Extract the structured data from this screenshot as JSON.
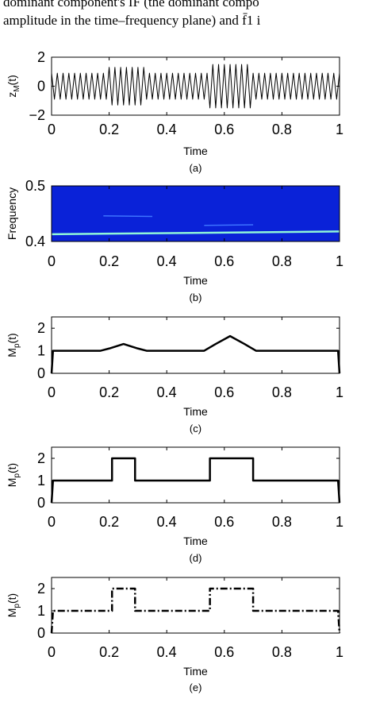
{
  "text": {
    "lines": [
      "dominant component's IF (the dominant compo",
      "amplitude in the time–frequency plane) and f̄1 i"
    ]
  },
  "chart_data": [
    {
      "type": "line",
      "caption": "(a)",
      "x_label": "Time",
      "y_label": {
        "base": "z",
        "sub": "M",
        "tail": "(t)"
      },
      "xlim": [
        0,
        1
      ],
      "ylim": [
        -2,
        2
      ],
      "xticks": [
        0,
        0.2,
        0.4,
        0.6,
        0.8,
        1
      ],
      "yticks": [
        {
          "value": -2,
          "label": "−2"
        },
        0,
        2
      ],
      "color": "#000000",
      "line_width": 1,
      "line_style": "solid",
      "x": [
        0,
        0.01,
        0.02,
        0.03,
        0.04,
        0.05,
        0.06,
        0.07,
        0.08,
        0.09,
        0.1,
        0.11,
        0.12,
        0.13,
        0.14,
        0.15,
        0.16,
        0.17,
        0.18,
        0.19,
        0.2,
        0.21,
        0.22,
        0.23,
        0.24,
        0.25,
        0.26,
        0.27,
        0.28,
        0.29,
        0.3,
        0.31,
        0.32,
        0.33,
        0.34,
        0.35,
        0.36,
        0.37,
        0.38,
        0.39,
        0.4,
        0.41,
        0.42,
        0.43,
        0.44,
        0.45,
        0.46,
        0.47,
        0.48,
        0.49,
        0.5,
        0.51,
        0.52,
        0.53,
        0.54,
        0.55,
        0.56,
        0.57,
        0.58,
        0.59,
        0.6,
        0.61,
        0.62,
        0.63,
        0.64,
        0.65,
        0.66,
        0.67,
        0.68,
        0.69,
        0.7,
        0.71,
        0.72,
        0.73,
        0.74,
        0.75,
        0.76,
        0.77,
        0.78,
        0.79,
        0.8,
        0.81,
        0.82,
        0.83,
        0.84,
        0.85,
        0.86,
        0.87,
        0.88,
        0.89,
        0.9,
        0.91,
        0.92,
        0.93,
        0.94,
        0.95,
        0.96,
        0.97,
        0.98,
        0.99,
        1
      ],
      "values": [
        0.9,
        -0.9,
        0.9,
        -0.9,
        0.9,
        -0.9,
        0.9,
        -0.9,
        0.9,
        -0.9,
        0.9,
        -0.9,
        0.9,
        -0.9,
        0.9,
        -0.9,
        0.9,
        -0.9,
        0.9,
        -0.9,
        1.3,
        -1.3,
        1.3,
        -1.3,
        1.3,
        -1.3,
        1.3,
        -1.3,
        1.3,
        -1.3,
        1.3,
        -1.3,
        1.3,
        -0.9,
        0.9,
        -0.9,
        0.9,
        -0.9,
        0.9,
        -0.9,
        0.9,
        -0.9,
        0.9,
        -0.9,
        0.9,
        -0.9,
        0.9,
        -0.9,
        0.9,
        -0.9,
        0.9,
        -0.9,
        0.9,
        -0.9,
        0.9,
        -1.5,
        1.5,
        -1.5,
        1.5,
        -1.5,
        1.5,
        -1.5,
        1.5,
        -1.5,
        1.5,
        -1.5,
        1.5,
        -1.5,
        1.5,
        -1.5,
        0.9,
        -0.9,
        0.9,
        -0.9,
        0.9,
        -0.9,
        0.9,
        -0.9,
        0.9,
        -0.9,
        0.9,
        -0.9,
        0.9,
        -0.9,
        0.9,
        -0.9,
        0.9,
        -0.9,
        0.9,
        -0.9,
        0.9,
        -0.9,
        0.9,
        -0.9,
        0.9,
        -0.9,
        0.9,
        -0.9,
        0.9,
        -0.9,
        0.9
      ]
    },
    {
      "type": "spectrogram",
      "caption": "(b)",
      "x_label": "Time",
      "y_label": {
        "base": "Frequency"
      },
      "xlim": [
        0,
        1
      ],
      "ylim": [
        0.4,
        0.5
      ],
      "xticks": [
        0,
        0.2,
        0.4,
        0.6,
        0.8,
        1
      ],
      "yticks": [
        0.4,
        0.5
      ],
      "background": "#0a22d8",
      "series": [
        {
          "color": "#8ff5d8",
          "x": [
            0,
            1
          ],
          "values": [
            0.413,
            0.418
          ]
        },
        {
          "color": "#3d73ff",
          "x": [
            0.18,
            0.35
          ],
          "values": [
            0.446,
            0.445
          ]
        },
        {
          "color": "#3d73ff",
          "x": [
            0.53,
            0.7
          ],
          "values": [
            0.429,
            0.43
          ]
        }
      ]
    },
    {
      "type": "line",
      "caption": "(c)",
      "x_label": "Time",
      "y_label": {
        "base": "M",
        "sub": "p",
        "tail": "(t)"
      },
      "xlim": [
        0,
        1
      ],
      "ylim": [
        0,
        2.5
      ],
      "xticks": [
        0,
        0.2,
        0.4,
        0.6,
        0.8,
        1
      ],
      "yticks": [
        0,
        1,
        2
      ],
      "color": "#000000",
      "line_width": 2.5,
      "line_style": "solid",
      "x": [
        0,
        0.005,
        0.17,
        0.2,
        0.25,
        0.3,
        0.33,
        0.53,
        0.57,
        0.62,
        0.67,
        0.71,
        0.995,
        1
      ],
      "values": [
        0,
        1,
        1,
        1.1,
        1.3,
        1.1,
        1,
        1,
        1.3,
        1.65,
        1.3,
        1,
        1,
        0
      ]
    },
    {
      "type": "line",
      "caption": "(d)",
      "x_label": "Time",
      "y_label": {
        "base": "M",
        "sub": "p",
        "tail": "(t)"
      },
      "xlim": [
        0,
        1
      ],
      "ylim": [
        0,
        2.5
      ],
      "xticks": [
        0,
        0.2,
        0.4,
        0.6,
        0.8,
        1
      ],
      "yticks": [
        0,
        1,
        2
      ],
      "color": "#000000",
      "line_width": 2.5,
      "line_style": "solid",
      "x": [
        0,
        0.005,
        0.21,
        0.21,
        0.29,
        0.29,
        0.55,
        0.55,
        0.7,
        0.7,
        0.995,
        1
      ],
      "values": [
        0,
        1,
        1,
        2,
        2,
        1,
        1,
        2,
        2,
        1,
        1,
        0
      ]
    },
    {
      "type": "line",
      "caption": "(e)",
      "x_label": "Time",
      "y_label": {
        "base": "M",
        "sub": "p",
        "tail": "(t)"
      },
      "xlim": [
        0,
        1
      ],
      "ylim": [
        0,
        2.5
      ],
      "xticks": [
        0,
        0.2,
        0.4,
        0.6,
        0.8,
        1
      ],
      "yticks": [
        0,
        1,
        2
      ],
      "color": "#000000",
      "line_width": 2.5,
      "line_style": "dashdot",
      "x": [
        0,
        0.005,
        0.21,
        0.21,
        0.29,
        0.29,
        0.55,
        0.55,
        0.7,
        0.7,
        0.995,
        1
      ],
      "values": [
        0,
        1,
        1,
        2,
        2,
        1,
        1,
        2,
        2,
        1,
        1,
        0
      ]
    }
  ]
}
